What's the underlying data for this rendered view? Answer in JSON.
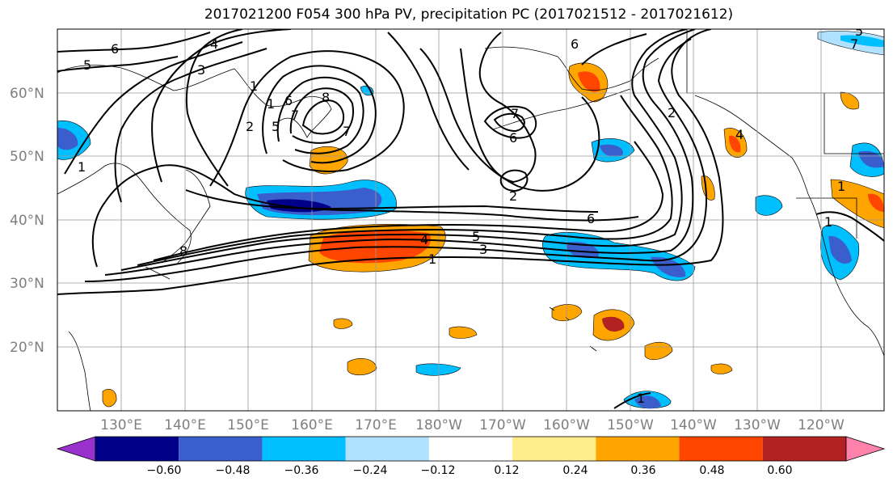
{
  "title": "2017021200 F054 300 hPa PV, precipitation PC (2017021512 - 2017021612)",
  "lat_labels": [
    "60°N",
    "50°N",
    "40°N",
    "30°N",
    "20°N"
  ],
  "lon_labels": [
    "130°E",
    "140°E",
    "150°E",
    "160°E",
    "170°E",
    "180°W",
    "170°W",
    "160°W",
    "150°W",
    "140°W",
    "130°W",
    "120°W"
  ],
  "colorbar": {
    "colors": [
      "#9932cc",
      "#00008b",
      "#3a5fcd",
      "#00bfff",
      "#b0e2ff",
      "#ffffff",
      "#ffec8b",
      "#ffa500",
      "#ff4500",
      "#b22222",
      "#ff82ab"
    ],
    "tick_labels": [
      "−0.60",
      "−0.48",
      "−0.36",
      "−0.24",
      "−0.12",
      "0.12",
      "0.24",
      "0.36",
      "0.48",
      "0.60"
    ]
  },
  "contour_labels": [
    "6",
    "5",
    "4",
    "3",
    "1",
    "2",
    "1",
    "5",
    "6",
    "7",
    "8",
    "7",
    "1",
    "8",
    "6",
    "7",
    "6",
    "2",
    "2",
    "6",
    "4",
    "4",
    "5",
    "3",
    "1",
    "1",
    "1",
    "1",
    "7",
    "5"
  ]
}
